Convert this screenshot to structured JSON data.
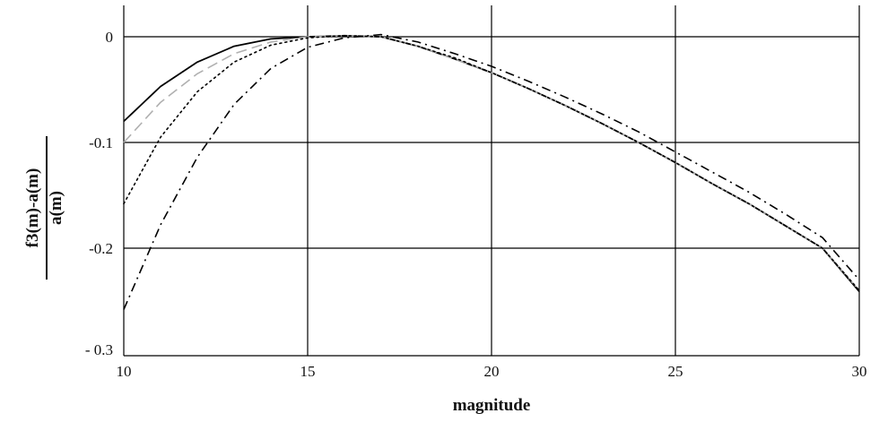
{
  "chart_data": {
    "type": "line",
    "title": "",
    "xlabel": "magnitude",
    "ylabel_numerator": "f3(m)-a(m)",
    "ylabel_denominator": "a(m)",
    "xlim": [
      10,
      30
    ],
    "ylim": [
      -0.3,
      0.03
    ],
    "xticks": [
      10,
      15,
      20,
      25,
      30
    ],
    "xtick_labels": [
      "10",
      "15",
      "20",
      "25",
      "30"
    ],
    "yticks": [
      0,
      -0.1,
      -0.2,
      -0.3
    ],
    "ytick_labels": [
      "0",
      "-0.1",
      "-0.2",
      "- 0.3"
    ],
    "grid": true,
    "colors": {
      "grid": "#000000",
      "series_dark": "#000000",
      "series_gray": "#b0b0b0"
    },
    "series": [
      {
        "style": "solid",
        "color": "#000000",
        "x": [
          10,
          11,
          12,
          13,
          14,
          15,
          16,
          17,
          18,
          19,
          20,
          21,
          22,
          23,
          24,
          25,
          26,
          27,
          28,
          29,
          30
        ],
        "y": [
          -0.08,
          -0.047,
          -0.024,
          -0.009,
          -0.002,
          0.0,
          0.001,
          0.0,
          -0.009,
          -0.021,
          -0.034,
          -0.049,
          -0.065,
          -0.082,
          -0.1,
          -0.119,
          -0.139,
          -0.158,
          -0.179,
          -0.2,
          -0.241
        ]
      },
      {
        "style": "dashed",
        "color": "#b0b0b0",
        "x": [
          10,
          11,
          12,
          13,
          14,
          15,
          16,
          17,
          18,
          19,
          20,
          21,
          22,
          23,
          24,
          25,
          26,
          27,
          28,
          29,
          30
        ],
        "y": [
          -0.1,
          -0.062,
          -0.035,
          -0.016,
          -0.005,
          0.0,
          0.001,
          0.0,
          -0.009,
          -0.021,
          -0.034,
          -0.049,
          -0.065,
          -0.082,
          -0.1,
          -0.119,
          -0.139,
          -0.158,
          -0.179,
          -0.2,
          -0.24
        ]
      },
      {
        "style": "dotted",
        "color": "#000000",
        "x": [
          10,
          11,
          12,
          13,
          14,
          15,
          16,
          17,
          18,
          19,
          20,
          21,
          22,
          23,
          24,
          25,
          26,
          27,
          28,
          29,
          30
        ],
        "y": [
          -0.158,
          -0.095,
          -0.052,
          -0.024,
          -0.008,
          -0.001,
          0.001,
          0.0,
          -0.009,
          -0.02,
          -0.034,
          -0.049,
          -0.065,
          -0.082,
          -0.1,
          -0.119,
          -0.139,
          -0.158,
          -0.179,
          -0.2,
          -0.24
        ]
      },
      {
        "style": "dashdot",
        "color": "#000000",
        "x": [
          10,
          11,
          12,
          13,
          14,
          15,
          16,
          17,
          18,
          19,
          20,
          21,
          22,
          23,
          24,
          25,
          26,
          27,
          28,
          29,
          30
        ],
        "y": [
          -0.258,
          -0.178,
          -0.114,
          -0.064,
          -0.03,
          -0.01,
          -0.001,
          0.002,
          -0.005,
          -0.016,
          -0.028,
          -0.042,
          -0.057,
          -0.073,
          -0.09,
          -0.109,
          -0.128,
          -0.147,
          -0.168,
          -0.19,
          -0.23
        ]
      }
    ]
  }
}
